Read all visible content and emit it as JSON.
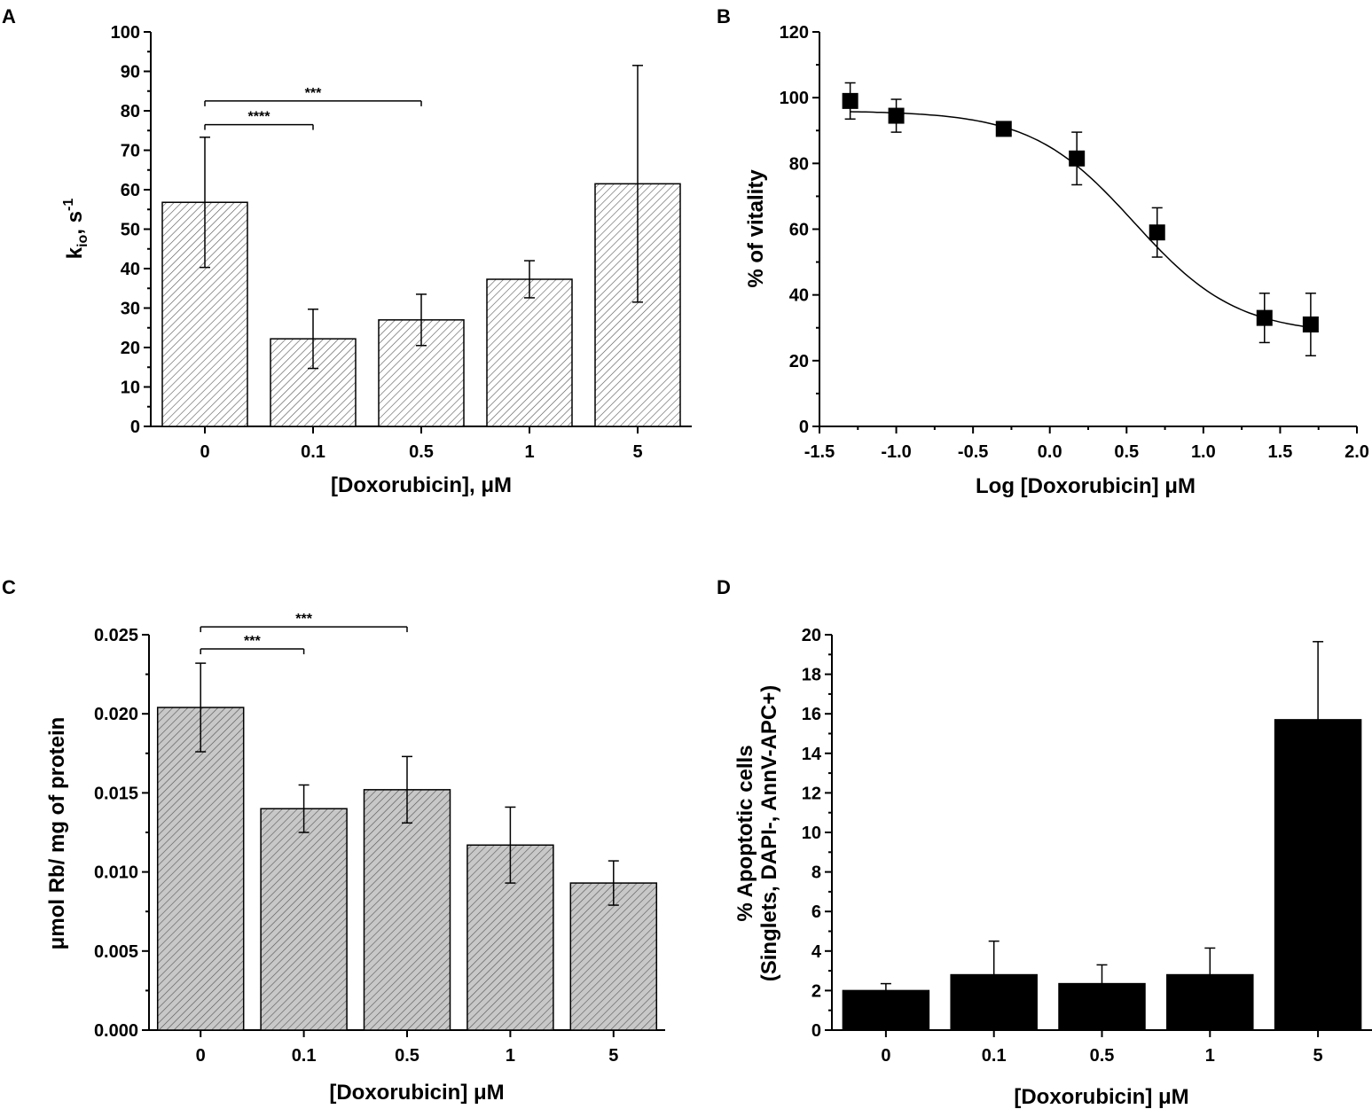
{
  "chart_data": [
    {
      "panel": "A",
      "type": "bar",
      "categories": [
        "0",
        "0.1",
        "0.5",
        "1",
        "5"
      ],
      "values": [
        56.8,
        22.2,
        27.0,
        37.3,
        61.5
      ],
      "errors": [
        16.5,
        7.5,
        6.5,
        4.7,
        30.0
      ],
      "ylim": [
        0,
        100
      ],
      "yticks": [
        "0",
        "10",
        "20",
        "30",
        "40",
        "50",
        "60",
        "70",
        "80",
        "90",
        "100"
      ],
      "ylabel_main": "k",
      "ylabel_sub": "io",
      "ylabel_rest": ", s",
      "ylabel_sup": "-1",
      "xlabel": "[Doxorubicin], μM",
      "bar_style": "hatched-white",
      "significance": [
        {
          "from": 0,
          "to": 1,
          "label": "****",
          "y": 76.5
        },
        {
          "from": 0,
          "to": 2,
          "label": "***",
          "y": 82.5
        }
      ]
    },
    {
      "panel": "B",
      "type": "scatter",
      "x": [
        -1.3,
        -1.0,
        -0.3,
        0.176,
        0.699,
        1.398,
        1.699
      ],
      "y": [
        99,
        94.5,
        90.5,
        81.5,
        59,
        33,
        31
      ],
      "errors": [
        5.5,
        5,
        1.5,
        8,
        7.5,
        7.5,
        9.5
      ],
      "fit_curve": {
        "type": "logistic",
        "top": 96,
        "bottom": 28,
        "logEC50": 0.55,
        "hill": 1.3
      },
      "xlim": [
        -1.5,
        2.0
      ],
      "ylim": [
        0,
        120
      ],
      "xticks": [
        "-1.5",
        "-1.0",
        "-0.5",
        "0.0",
        "0.5",
        "1.0",
        "1.5",
        "2.0"
      ],
      "yticks": [
        "0",
        "20",
        "40",
        "60",
        "80",
        "100",
        "120"
      ],
      "ylabel": "% of vitality",
      "xlabel": "Log [Doxorubicin] μM"
    },
    {
      "panel": "C",
      "type": "bar",
      "categories": [
        "0",
        "0.1",
        "0.5",
        "1",
        "5"
      ],
      "values": [
        0.0204,
        0.014,
        0.0152,
        0.0117,
        0.0093
      ],
      "errors": [
        0.0028,
        0.0015,
        0.0021,
        0.0024,
        0.0014
      ],
      "ylim": [
        0,
        0.025
      ],
      "yticks": [
        "0.000",
        "0.005",
        "0.010",
        "0.015",
        "0.020",
        "0.025"
      ],
      "ylabel": "μmol Rb/ mg of protein",
      "xlabel": "[Doxorubicin] μM",
      "bar_style": "hatched-gray",
      "significance": [
        {
          "from": 0,
          "to": 1,
          "label": "***",
          "y": 0.0241
        },
        {
          "from": 0,
          "to": 2,
          "label": "***",
          "y": 0.0255
        }
      ]
    },
    {
      "panel": "D",
      "type": "bar",
      "categories": [
        "0",
        "0.1",
        "0.5",
        "1",
        "5"
      ],
      "values": [
        2.0,
        2.8,
        2.35,
        2.8,
        15.7
      ],
      "errors": [
        0.35,
        1.7,
        0.95,
        1.35,
        3.95
      ],
      "ylim": [
        0,
        20
      ],
      "yticks": [
        "0",
        "2",
        "4",
        "6",
        "8",
        "10",
        "12",
        "14",
        "16",
        "18",
        "20"
      ],
      "ylabel_line1": "% Apoptotic cells",
      "ylabel_line2": "(Singlets, DAPI-, AnnV-APC+)",
      "xlabel": "[Doxorubicin] μM",
      "bar_style": "solid-black",
      "significance": []
    }
  ],
  "panel_labels": [
    "A",
    "B",
    "C",
    "D"
  ],
  "colors": {
    "bar_black": "#000000",
    "bar_gray": "#c8c8c8",
    "hatch": "#555555",
    "axis": "#000000"
  }
}
